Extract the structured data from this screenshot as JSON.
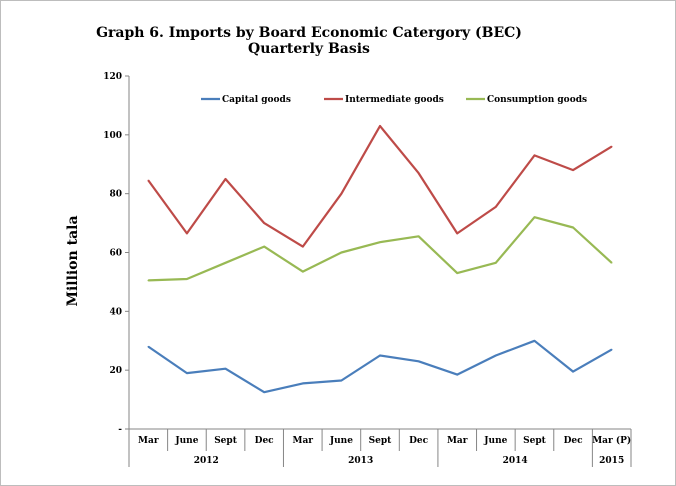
{
  "chart_data": {
    "type": "line",
    "title": "Graph 6. Imports by Board Economic Catergory (BEC)",
    "subtitle": "Quarterly Basis",
    "xlabel": "",
    "ylabel": "Million tala",
    "ylim": [
      0,
      120
    ],
    "yticks": [
      {
        "value": 0,
        "label": "-"
      },
      {
        "value": 20,
        "label": "20"
      },
      {
        "value": 40,
        "label": "40"
      },
      {
        "value": 60,
        "label": "60"
      },
      {
        "value": 80,
        "label": "80"
      },
      {
        "value": 100,
        "label": "100"
      },
      {
        "value": 120,
        "label": "120"
      }
    ],
    "grid": false,
    "legend_position": "top",
    "categories": [
      "Mar",
      "June",
      "Sept",
      "Dec",
      "Mar",
      "June",
      "Sept",
      "Dec",
      "Mar",
      "June",
      "Sept",
      "Dec",
      "Mar (P)"
    ],
    "years": [
      {
        "label": "2012",
        "count": 4
      },
      {
        "label": "2013",
        "count": 4
      },
      {
        "label": "2014",
        "count": 4
      },
      {
        "label": "2015",
        "count": 1
      }
    ],
    "series": [
      {
        "name": "Capital goods",
        "color": "#4a7ebb",
        "values": [
          28,
          19,
          20.5,
          12.5,
          15.5,
          16.5,
          25,
          23,
          18.5,
          25,
          30,
          19.5,
          27
        ]
      },
      {
        "name": "Intermediate goods",
        "color": "#be4b48",
        "values": [
          84.5,
          66.5,
          85,
          70,
          62,
          80,
          103,
          87,
          66.5,
          75.5,
          93,
          88,
          96
        ]
      },
      {
        "name": "Consumption goods",
        "color": "#98b954",
        "values": [
          50.5,
          51,
          56.5,
          62,
          53.5,
          60,
          63.5,
          65.5,
          53,
          56.5,
          72,
          68.5,
          56.5
        ]
      }
    ]
  }
}
